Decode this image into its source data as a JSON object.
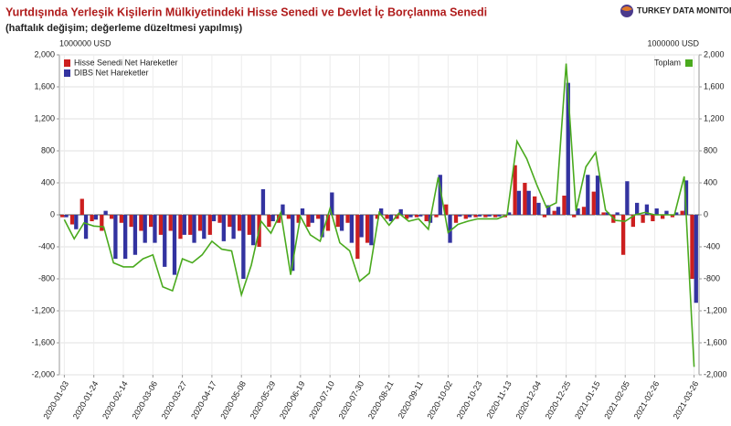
{
  "chart_data": {
    "type": "bar",
    "title": "Yurtdışında Yerleşik Kişilerin Mülkiyetindeki Hisse Senedi ve Devlet İç Borçlanma Senedi",
    "subtitle": "(haftalık değişim; değerleme düzeltmesi yapılmış)",
    "logo": "TURKEY DATA MONITOR",
    "y_label": "1000000 USD",
    "y2_label": "1000000 USD",
    "categories": [
      "2020-01-03",
      null,
      null,
      "2020-01-24",
      null,
      null,
      "2020-02-14",
      null,
      null,
      "2020-03-06",
      null,
      null,
      "2020-03-27",
      null,
      null,
      "2020-04-17",
      null,
      null,
      "2020-05-08",
      null,
      null,
      "2020-05-29",
      null,
      null,
      "2020-06-19",
      null,
      null,
      "2020-07-10",
      null,
      null,
      "2020-07-30",
      null,
      null,
      "2020-08-21",
      null,
      null,
      "2020-09-11",
      null,
      null,
      "2020-10-02",
      null,
      null,
      "2020-10-23",
      null,
      null,
      "2020-11-13",
      null,
      null,
      "2020-12-04",
      null,
      null,
      "2020-12-25",
      null,
      null,
      "2021-01-15",
      null,
      null,
      "2021-02-05",
      null,
      null,
      "2021-02-26",
      null,
      null,
      null,
      "2021-03-26"
    ],
    "series": [
      {
        "name": "Hisse Senedi Net Hareketler",
        "color": "#cc1f1f",
        "type": "bar",
        "values": [
          -30,
          -120,
          200,
          -80,
          -200,
          -50,
          -100,
          -150,
          -200,
          -150,
          -250,
          -200,
          -300,
          -250,
          -200,
          -250,
          -100,
          -150,
          -200,
          -250,
          -400,
          -150,
          -100,
          -50,
          -100,
          -150,
          -50,
          -200,
          -150,
          -100,
          -550,
          -350,
          -50,
          -50,
          -50,
          -50,
          -30,
          -80,
          -30,
          130,
          -100,
          -50,
          -30,
          -30,
          -30,
          -30,
          620,
          400,
          230,
          -30,
          50,
          240,
          -30,
          100,
          290,
          30,
          -100,
          -500,
          -150,
          -100,
          -80,
          -50,
          -30,
          50,
          -800
        ]
      },
      {
        "name": "DIBS Net Hareketler",
        "color": "#3333a0",
        "type": "bar",
        "values": [
          -30,
          -180,
          -300,
          -60,
          50,
          -550,
          -550,
          -500,
          -350,
          -350,
          -650,
          -750,
          -250,
          -350,
          -300,
          -80,
          -330,
          -300,
          -800,
          -380,
          320,
          -80,
          130,
          -700,
          80,
          -100,
          -280,
          280,
          -200,
          -350,
          -280,
          -380,
          80,
          -80,
          70,
          -30,
          -20,
          -100,
          500,
          -350,
          -20,
          -30,
          -20,
          -20,
          -20,
          30,
          300,
          300,
          150,
          120,
          100,
          1650,
          80,
          500,
          490,
          30,
          30,
          420,
          150,
          130,
          80,
          50,
          30,
          430,
          -1100
        ]
      },
      {
        "name": "Toplam",
        "color": "#4aaa1e",
        "type": "line",
        "axis": "y2",
        "values": [
          -60,
          -300,
          -100,
          -140,
          -150,
          -600,
          -650,
          -650,
          -550,
          -500,
          -900,
          -950,
          -550,
          -600,
          -500,
          -330,
          -430,
          -450,
          -1000,
          -630,
          -80,
          -230,
          30,
          -750,
          -20,
          -250,
          -330,
          80,
          -350,
          -450,
          -830,
          -730,
          30,
          -130,
          20,
          -80,
          -50,
          -180,
          470,
          -220,
          -120,
          -80,
          -50,
          -50,
          -50,
          0,
          920,
          700,
          380,
          90,
          150,
          1890,
          50,
          600,
          780,
          60,
          -70,
          -80,
          0,
          30,
          0,
          0,
          0,
          480,
          -1900
        ]
      }
    ],
    "ylim": [
      -2000,
      2000
    ],
    "yticks": [
      {
        "value": -2000,
        "label": "-2,000"
      },
      {
        "value": -1600,
        "label": "-1,600"
      },
      {
        "value": -1200,
        "label": "-1,200"
      },
      -800,
      -400,
      0,
      400,
      800,
      {
        "value": 1200,
        "label": "1,200"
      },
      {
        "value": 1600,
        "label": "1,600"
      },
      {
        "value": 2000,
        "label": "2,000"
      }
    ],
    "y2lim": [
      -2000,
      2000
    ],
    "y2ticks": [
      {
        "value": -2000,
        "label": "-2,000"
      },
      {
        "value": -1600,
        "label": "-1,600"
      },
      {
        "value": -1200,
        "label": "-1,200"
      },
      -800,
      -400,
      0,
      400,
      800,
      {
        "value": 1200,
        "label": "1,200"
      },
      {
        "value": 1600,
        "label": "1,600"
      },
      {
        "value": 2000,
        "label": "2,000"
      }
    ],
    "grid": true
  }
}
